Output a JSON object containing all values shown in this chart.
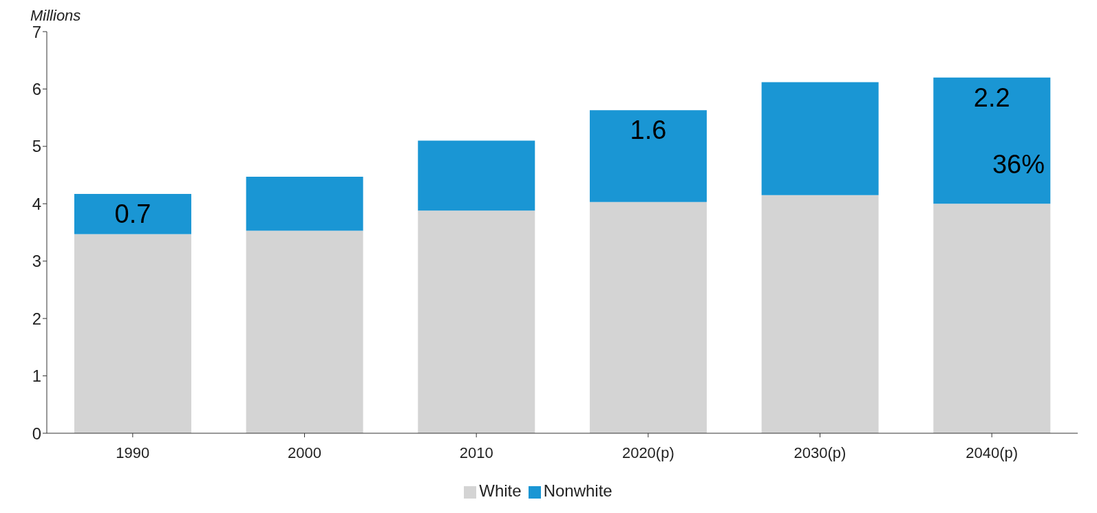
{
  "chart_data": {
    "type": "bar",
    "ylabel": "Millions",
    "stacked": true,
    "categories": [
      "1990",
      "2000",
      "2010",
      "2020(p)",
      "2030(p)",
      "2040(p)"
    ],
    "series": [
      {
        "name": "White",
        "color": "#d4d4d4",
        "values": [
          3.47,
          3.53,
          3.88,
          4.03,
          4.15,
          4.0
        ]
      },
      {
        "name": "Nonwhite",
        "color": "#1a96d4",
        "values": [
          0.7,
          0.94,
          1.22,
          1.6,
          1.97,
          2.2
        ],
        "value_labels": [
          "0.7",
          null,
          null,
          "1.6",
          null,
          "2.2"
        ]
      }
    ],
    "ylim": [
      0,
      7
    ],
    "yticks": [
      0,
      1,
      2,
      3,
      4,
      5,
      6,
      7
    ],
    "grid": false,
    "legend": "bottom",
    "annotations": [
      "36%"
    ]
  }
}
